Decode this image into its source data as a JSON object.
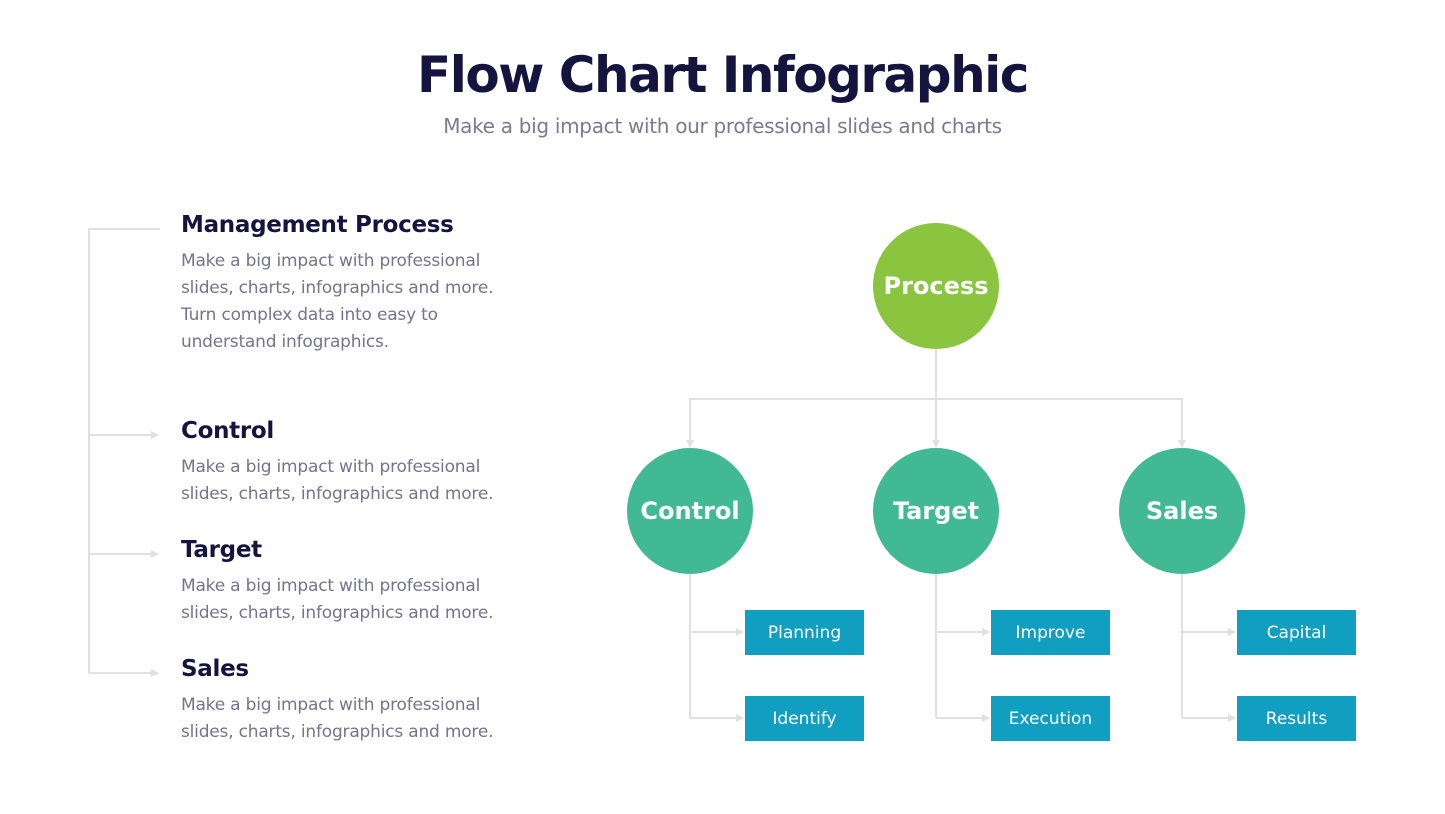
{
  "header": {
    "title": "Flow Chart Infographic",
    "subtitle": "Make a big impact with our professional slides and charts"
  },
  "sections": [
    {
      "title": "Management Process",
      "lines": [
        "Make a big impact with professional",
        "slides, charts, infographics and more.",
        "Turn complex data into easy to",
        "understand infographics."
      ]
    },
    {
      "title": "Control",
      "lines": [
        "Make a big impact with professional",
        "slides, charts, infographics and more."
      ]
    },
    {
      "title": "Target",
      "lines": [
        "Make a big impact with professional",
        "slides, charts, infographics and more."
      ]
    },
    {
      "title": "Sales",
      "lines": [
        "Make a big impact with professional",
        "slides, charts, infographics and more."
      ]
    }
  ],
  "flow": {
    "root": "Process",
    "branches": [
      {
        "label": "Control",
        "children": [
          "Planning",
          "Identify"
        ]
      },
      {
        "label": "Target",
        "children": [
          "Improve",
          "Execution"
        ]
      },
      {
        "label": "Sales",
        "children": [
          "Capital",
          "Results"
        ]
      }
    ]
  },
  "colors": {
    "root": "#8bc540",
    "branch": "#41b993",
    "leaf": "#109fc0",
    "connector": "#e0e0e0",
    "heading": "#14143f",
    "body": "#74748c"
  }
}
